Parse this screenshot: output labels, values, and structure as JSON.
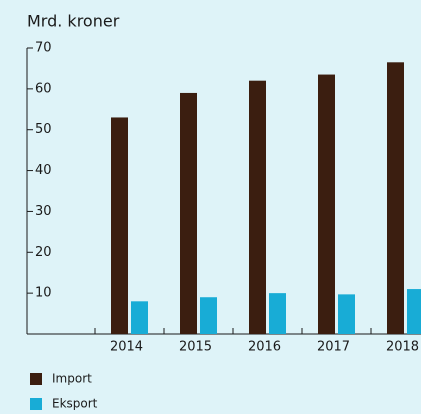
{
  "chart_data": {
    "type": "bar",
    "y_label": "Mrd. kroner",
    "categories": [
      "2014",
      "2015",
      "2016",
      "2017",
      "2018"
    ],
    "series": [
      {
        "name": "Import",
        "color": "#3b1e10",
        "values": [
          53,
          59,
          62,
          63.5,
          66.5
        ]
      },
      {
        "name": "Eksport",
        "color": "#18acd6",
        "values": [
          8,
          9,
          10,
          9.7,
          11
        ]
      }
    ],
    "ylim": [
      0,
      70
    ],
    "yticks": [
      10,
      20,
      30,
      40,
      50,
      60,
      70
    ],
    "grid": false,
    "legend": "bottom-left"
  }
}
